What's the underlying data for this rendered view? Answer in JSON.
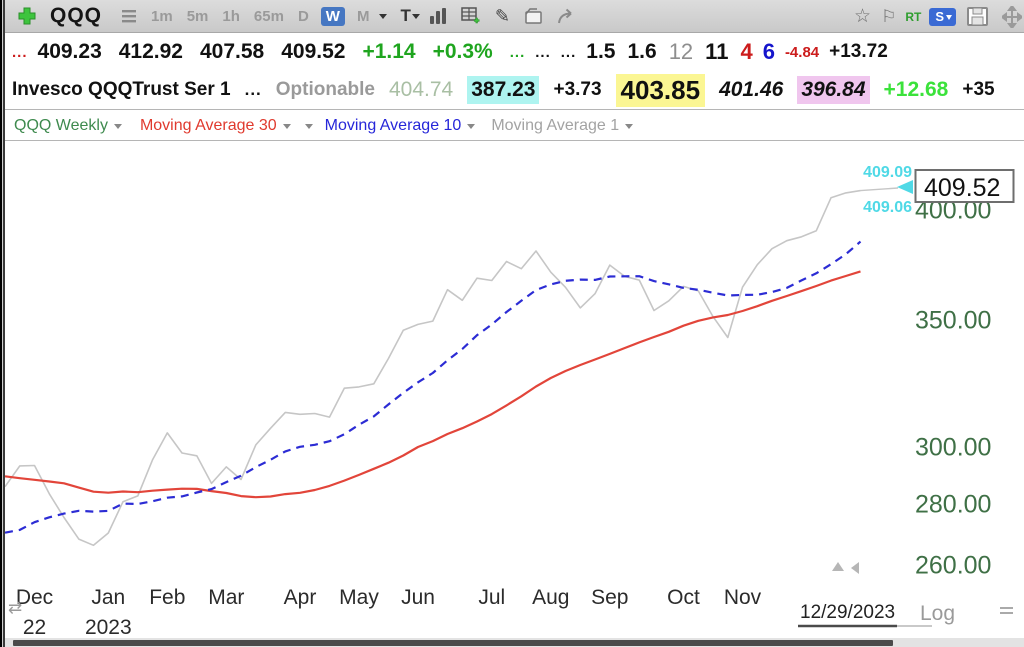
{
  "toolbar": {
    "symbol": "QQQ",
    "timeframes": [
      "1m",
      "5m",
      "1h",
      "65m",
      "D",
      "W",
      "M"
    ],
    "active_timeframe": "W",
    "text_tool_label": "T",
    "rt_label": "RT",
    "snap_label": "S"
  },
  "icons": {
    "pencil": "✎",
    "star": "☆",
    "flag": "⚐",
    "swap_arrows": "⇄"
  },
  "quote_row": {
    "dots_red": "...",
    "open": "409.23",
    "high": "412.92",
    "low": "407.58",
    "last": "409.52",
    "change": "+1.14",
    "change_pct": "+0.3%",
    "dots_green": "...",
    "dots_black_1": "...",
    "dots_black_2": "...",
    "val_1": "1.5",
    "val_2": "1.6",
    "val_gray": "12",
    "val_black": "11",
    "val_red": "4",
    "val_blue": "6",
    "val_small_red": "-4.84",
    "val_change2": "+13.72"
  },
  "info_row": {
    "name": "Invesco QQQTrust Ser 1",
    "ellipsis": "...",
    "optionable": "Optionable",
    "val_sage": "404.74",
    "val_cyan": "387.23",
    "val_plus": "+3.73",
    "val_yellow": "403.85",
    "val_italic": "401.46",
    "val_plum": "396.84",
    "val_green": "+12.68",
    "val_clipped": "+35"
  },
  "indicator_row": {
    "series_label": "QQQ Weekly",
    "ma30_label": "Moving Average 30",
    "ma10_label": "Moving Average 10",
    "ma1_label": "Moving Average 1"
  },
  "chart_data": {
    "type": "line",
    "scale": "log",
    "x_unit": "week",
    "x_range_weeks": 59,
    "colors": {
      "price": "#c6c6c6",
      "ma10": "#2c2cd4",
      "ma30": "#e2453a",
      "cyan_marker": "#4fd9e6",
      "axis_green": "#3f7046"
    },
    "y_axis": {
      "scale_label": "Log",
      "ticks": [
        {
          "label": "400.00",
          "value": 400
        },
        {
          "label": "350.00",
          "value": 350
        },
        {
          "label": "300.00",
          "value": 300
        },
        {
          "label": "280.00",
          "value": 280
        },
        {
          "label": "260.00",
          "value": 260
        }
      ]
    },
    "x_axis": {
      "months": [
        {
          "label": "Dec",
          "week": 3
        },
        {
          "label": "Jan",
          "week": 8
        },
        {
          "label": "Feb",
          "week": 12
        },
        {
          "label": "Mar",
          "week": 16
        },
        {
          "label": "Apr",
          "week": 21
        },
        {
          "label": "May",
          "week": 25
        },
        {
          "label": "Jun",
          "week": 29
        },
        {
          "label": "Jul",
          "week": 34
        },
        {
          "label": "Aug",
          "week": 38
        },
        {
          "label": "Sep",
          "week": 42
        },
        {
          "label": "Oct",
          "week": 47
        },
        {
          "label": "Nov",
          "week": 51
        }
      ],
      "year_labels": [
        {
          "label": "22",
          "week": 3
        },
        {
          "label": "2023",
          "week": 8
        }
      ],
      "right_date_label": "12/29/2023"
    },
    "last_price_box": "409.52",
    "price_markers": {
      "upper": "409.09",
      "lower": "409.06"
    },
    "series": [
      {
        "id": "price",
        "name": "QQQ Weekly close",
        "color": "#c6c6c6",
        "style": "solid",
        "width": 1.6,
        "values": [
          285.91,
          293.24,
          293.36,
          283.48,
          275.42,
          268.29,
          266.28,
          270.3,
          280.77,
          282.74,
          295.37,
          305.2,
          297.85,
          296.84,
          287.06,
          292.87,
          288.43,
          300.81,
          306.92,
          312.9,
          312.18,
          312.46,
          311.13,
          322.22,
          322.72,
          323.95,
          334.07,
          345.66,
          348.16,
          349.53,
          363.14,
          358.47,
          368.22,
          367.21,
          375.77,
          372.51,
          380.6,
          370.93,
          364.19,
          355.21,
          361.39,
          374.11,
          369.09,
          367.39,
          354.08,
          358.27,
          364.59,
          362.62,
          351.46,
          342.65,
          364.24,
          374.31,
          381.65,
          385.35,
          387.18,
          390.1,
          405.98,
          408.38,
          409.52
        ]
      },
      {
        "id": "ma30",
        "name": "Moving Average 30",
        "color": "#e2453a",
        "style": "solid",
        "width": 2.2,
        "values": [
          289.53,
          288.87,
          288.32,
          287.73,
          287.11,
          285.62,
          284.17,
          283.84,
          284.24,
          284.03,
          284.54,
          284.91,
          285.21,
          285.17,
          284.4,
          283.73,
          282.68,
          282.31,
          282.54,
          283.37,
          283.81,
          284.76,
          286.19,
          288.03,
          290.03,
          292.19,
          294.36,
          296.95,
          300.02,
          302.2,
          304.78,
          306.95,
          309.45,
          312.24,
          315.58,
          319.06,
          322.87,
          326.22,
          329.0,
          331.42,
          333.62,
          335.92,
          338.29,
          340.64,
          342.88,
          345.06,
          347.6,
          349.66,
          351.14,
          352.13,
          353.87,
          355.93,
          358.28,
          360.38,
          362.53,
          364.74,
          367.14,
          369.23,
          371.27
        ]
      },
      {
        "id": "ma10",
        "name": "Moving Average 10",
        "color": "#2c2cd4",
        "style": "dashed",
        "width": 2.2,
        "values": [
          270.39,
          271.32,
          273.85,
          275.5,
          276.74,
          277.67,
          277.4,
          277.63,
          280.11,
          279.98,
          280.92,
          282.12,
          282.57,
          283.9,
          285.07,
          287.53,
          289.74,
          292.79,
          295.41,
          298.42,
          300.1,
          300.83,
          302.16,
          304.7,
          308.26,
          311.37,
          315.93,
          320.42,
          324.54,
          328.21,
          333.3,
          337.9,
          343.61,
          348.11,
          353.42,
          358.27,
          362.93,
          365.45,
          367.06,
          367.62,
          367.45,
          369.01,
          369.1,
          369.12,
          366.95,
          365.52,
          363.92,
          363.09,
          361.82,
          360.56,
          360.85,
          360.87,
          362.12,
          363.92,
          367.23,
          370.41,
          374.55,
          379.13,
          384.93
        ]
      }
    ]
  }
}
